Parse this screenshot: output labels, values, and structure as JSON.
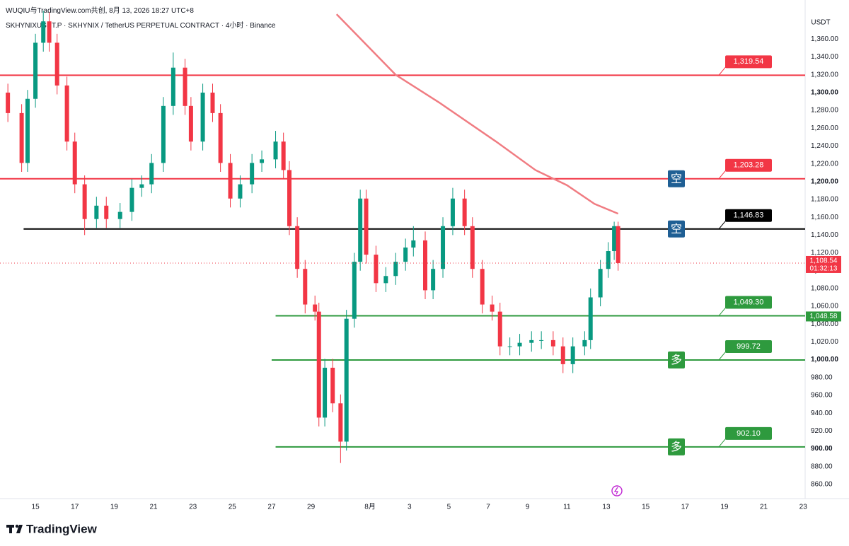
{
  "header": {
    "title": "WUQIU与TradingView.com共创, 8月 13, 2026 18:27 UTC+8",
    "symbol": "SKHYNIXUSDT.P · SKHYNIX / TetherUS PERPETUAL CONTRACT · 4小时 · Binance"
  },
  "chart_data": {
    "type": "candlestick",
    "y_axis_unit": "USDT",
    "x": [
      -1.4,
      -0.7,
      -0.4,
      0,
      0.4,
      0.7,
      1.1,
      1.6,
      2.0,
      2.5,
      3.1,
      3.6,
      4.3,
      4.9,
      5.4,
      5.9,
      6.5,
      7.0,
      7.6,
      7.9,
      8.5,
      9.0,
      9.4,
      9.9,
      10.4,
      11.0,
      11.5,
      12.2,
      12.6,
      12.9,
      13.3,
      13.7,
      14.2,
      14.4,
      14.7,
      15.1,
      15.5,
      15.8,
      16.2,
      16.5,
      16.8,
      17.3,
      17.8,
      18.3,
      18.8,
      19.2,
      19.8,
      20.2,
      20.7,
      21.2,
      21.8,
      22.2,
      22.7,
      23.2,
      23.6,
      24.1,
      24.6,
      25.2,
      25.7,
      26.3,
      26.8,
      27.3,
      27.9,
      28.2,
      28.7,
      29.1,
      29.4,
      29.6
    ],
    "open": [
      1300,
      1277,
      1221,
      1293,
      1356,
      1380,
      1356,
      1308,
      1245,
      1197,
      1158,
      1173,
      1158,
      1166,
      1193,
      1197,
      1221,
      1285,
      1328,
      1285,
      1245,
      1300,
      1277,
      1221,
      1181,
      1197,
      1221,
      1225,
      1245,
      1213,
      1150,
      1102,
      1062,
      1054,
      935,
      991,
      951,
      908,
      1046,
      1110,
      1181,
      1118,
      1086,
      1094,
      1110,
      1126,
      1134,
      1078,
      1102,
      1150,
      1181,
      1150,
      1102,
      1062,
      1054,
      1015,
      1015,
      1019,
      1022,
      1022,
      1015,
      995,
      1015,
      1022,
      1070,
      1102,
      1122,
      1150
    ],
    "high": [
      1310,
      1287,
      1303,
      1366,
      1392,
      1390,
      1366,
      1318,
      1255,
      1207,
      1183,
      1183,
      1176,
      1203,
      1207,
      1231,
      1295,
      1345,
      1338,
      1295,
      1310,
      1310,
      1287,
      1231,
      1207,
      1231,
      1235,
      1257,
      1255,
      1223,
      1160,
      1112,
      1072,
      1064,
      1001,
      1001,
      961,
      1056,
      1120,
      1191,
      1191,
      1128,
      1104,
      1120,
      1136,
      1150,
      1144,
      1112,
      1160,
      1193,
      1191,
      1160,
      1112,
      1072,
      1064,
      1025,
      1029,
      1032,
      1032,
      1032,
      1025,
      1025,
      1032,
      1080,
      1112,
      1132,
      1155,
      1155
    ],
    "low": [
      1267,
      1211,
      1211,
      1283,
      1346,
      1346,
      1298,
      1235,
      1187,
      1140,
      1148,
      1148,
      1148,
      1156,
      1183,
      1187,
      1211,
      1275,
      1275,
      1235,
      1235,
      1267,
      1211,
      1171,
      1171,
      1187,
      1211,
      1215,
      1203,
      1140,
      1092,
      1052,
      1044,
      925,
      925,
      941,
      884,
      898,
      1036,
      1100,
      1108,
      1076,
      1076,
      1084,
      1100,
      1116,
      1068,
      1068,
      1092,
      1140,
      1140,
      1092,
      1052,
      1044,
      1005,
      1005,
      1005,
      1009,
      1012,
      1005,
      985,
      985,
      1005,
      1012,
      1060,
      1092,
      1112,
      1100
    ],
    "close": [
      1277,
      1221,
      1293,
      1356,
      1380,
      1356,
      1308,
      1245,
      1197,
      1158,
      1173,
      1158,
      1166,
      1193,
      1197,
      1221,
      1285,
      1328,
      1285,
      1245,
      1300,
      1277,
      1221,
      1181,
      1197,
      1221,
      1225,
      1245,
      1213,
      1150,
      1102,
      1062,
      1054,
      935,
      991,
      951,
      908,
      1046,
      1110,
      1181,
      1118,
      1086,
      1094,
      1110,
      1126,
      1134,
      1078,
      1102,
      1150,
      1181,
      1150,
      1102,
      1062,
      1054,
      1015,
      1015,
      1019,
      1022,
      1022,
      1015,
      995,
      1015,
      1022,
      1070,
      1102,
      1122,
      1150,
      1108.54
    ],
    "colors": {
      "up": "#089981",
      "down": "#f23645"
    },
    "xlim": [
      -1.8,
      39.1
    ],
    "ylim": [
      844,
      1404
    ],
    "xticks": [
      {
        "value": 0,
        "label": "15"
      },
      {
        "value": 2,
        "label": "17"
      },
      {
        "value": 4,
        "label": "19"
      },
      {
        "value": 6,
        "label": "21"
      },
      {
        "value": 8,
        "label": "23"
      },
      {
        "value": 10,
        "label": "25"
      },
      {
        "value": 12,
        "label": "27"
      },
      {
        "value": 14,
        "label": "29"
      },
      {
        "value": 17,
        "label": "8月"
      },
      {
        "value": 19,
        "label": "3"
      },
      {
        "value": 21,
        "label": "5"
      },
      {
        "value": 23,
        "label": "7"
      },
      {
        "value": 25,
        "label": "9"
      },
      {
        "value": 27,
        "label": "11"
      },
      {
        "value": 29,
        "label": "13"
      },
      {
        "value": 31,
        "label": "15"
      },
      {
        "value": 33,
        "label": "17"
      },
      {
        "value": 35,
        "label": "19"
      },
      {
        "value": 37,
        "label": "21"
      },
      {
        "value": 39,
        "label": "23"
      }
    ],
    "yticks": [
      {
        "value": 860,
        "label": "860.00"
      },
      {
        "value": 880,
        "label": "880.00"
      },
      {
        "value": 900,
        "label": "900.00"
      },
      {
        "value": 920,
        "label": "920.00"
      },
      {
        "value": 940,
        "label": "940.00"
      },
      {
        "value": 960,
        "label": "960.00"
      },
      {
        "value": 980,
        "label": "980.00"
      },
      {
        "value": 1000,
        "label": "1,000.00"
      },
      {
        "value": 1020,
        "label": "1,020.00"
      },
      {
        "value": 1040,
        "label": "1,040.00"
      },
      {
        "value": 1060,
        "label": "1,060.00"
      },
      {
        "value": 1080,
        "label": "1,080.00"
      },
      {
        "value": 1100,
        "label": "1,100.00"
      },
      {
        "value": 1120,
        "label": "1,120.00"
      },
      {
        "value": 1140,
        "label": "1,140.00"
      },
      {
        "value": 1160,
        "label": "1,160.00"
      },
      {
        "value": 1180,
        "label": "1,180.00"
      },
      {
        "value": 1200,
        "label": "1,200.00"
      },
      {
        "value": 1220,
        "label": "1,220.00"
      },
      {
        "value": 1240,
        "label": "1,240.00"
      },
      {
        "value": 1260,
        "label": "1,260.00"
      },
      {
        "value": 1280,
        "label": "1,280.00"
      },
      {
        "value": 1300,
        "label": "1,300.00"
      },
      {
        "value": 1320,
        "label": "1,320.00"
      },
      {
        "value": 1340,
        "label": "1,340.00"
      },
      {
        "value": 1360,
        "label": "1,360.00"
      }
    ],
    "ma_line": {
      "color": "#f07c82",
      "x": [
        15.3,
        18.3,
        20.5,
        23.4,
        25.4,
        27.0,
        28.4,
        29.6
      ],
      "values": [
        1388,
        1320,
        1289,
        1245,
        1213,
        1196,
        1175,
        1164
      ]
    },
    "levels": [
      {
        "value": 1319.54,
        "label": "1,319.54",
        "color": "#f23645",
        "x_start": -1.8
      },
      {
        "value": 1203.28,
        "label": "1,203.28",
        "color": "#f23645",
        "x_start": -1.8,
        "marker": "空",
        "marker_color": "#1f5f94"
      },
      {
        "value": 1146.83,
        "label": "1,146.83",
        "color": "#000000",
        "x_start": -0.6,
        "marker": "空",
        "marker_color": "#1f5f94"
      },
      {
        "value": 1049.3,
        "label": "1,049.30",
        "color": "#2e9a3e",
        "x_start": 12.2
      },
      {
        "value": 999.72,
        "label": "999.72",
        "color": "#2e9a3e",
        "x_start": 12.0,
        "marker": "多",
        "marker_color": "#2e9a3e"
      },
      {
        "value": 902.1,
        "label": "902.10",
        "color": "#2e9a3e",
        "x_start": 12.2,
        "marker": "多",
        "marker_color": "#2e9a3e"
      }
    ],
    "last_price": {
      "value": 1108.54,
      "label": "1,108.54",
      "countdown": "01:32:13",
      "color": "#f23645"
    },
    "axis_price_labels": [
      {
        "value": 1048.58,
        "label": "1,048.58",
        "color": "#2e9a3e"
      }
    ]
  },
  "footer": {
    "brand": "TradingView"
  }
}
